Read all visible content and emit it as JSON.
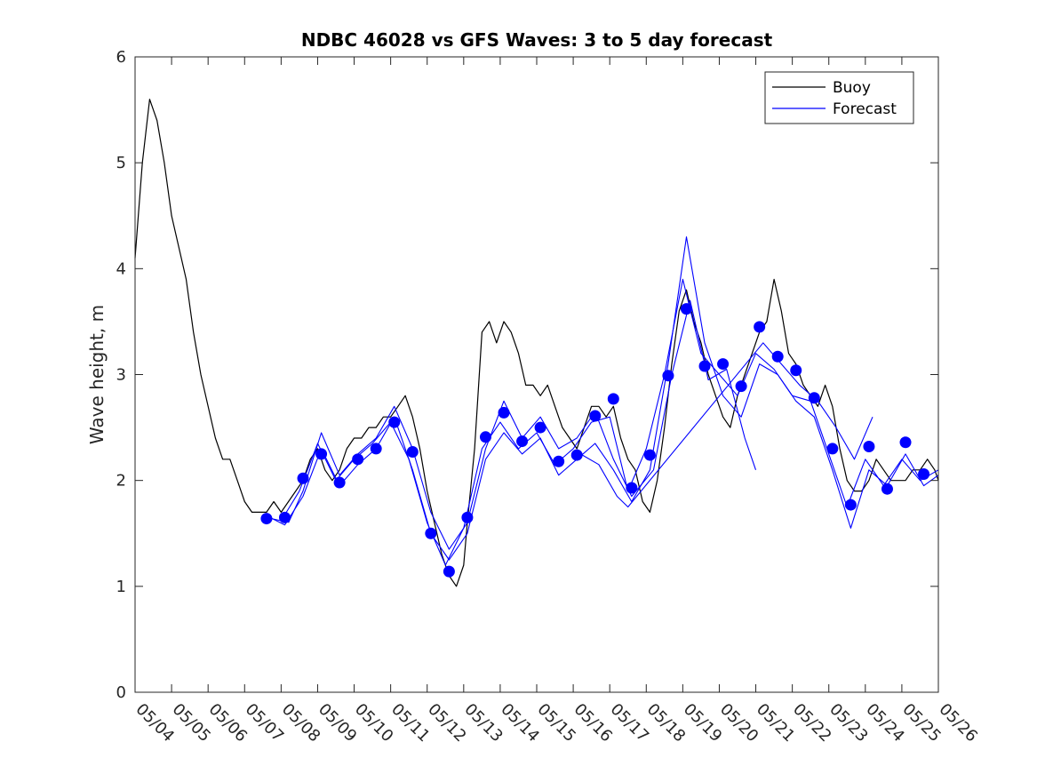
{
  "chart_data": {
    "type": "line",
    "title": "NDBC 46028 vs GFS Waves: 3 to 5 day forecast",
    "xlabel": "",
    "ylabel": "Wave height, m",
    "xlim": [
      "05/04",
      "05/26"
    ],
    "ylim": [
      0,
      6
    ],
    "x_tick_labels": [
      "05/04",
      "05/05",
      "05/06",
      "05/07",
      "05/08",
      "05/09",
      "05/10",
      "05/11",
      "05/12",
      "05/13",
      "05/14",
      "05/15",
      "05/16",
      "05/17",
      "05/18",
      "05/19",
      "05/20",
      "05/21",
      "05/22",
      "05/23",
      "05/24",
      "05/25",
      "05/26"
    ],
    "y_ticks": [
      0,
      1,
      2,
      3,
      4,
      5,
      6
    ],
    "grid": false,
    "legend": {
      "position": "top-right",
      "entries": [
        {
          "name": "Buoy",
          "color": "#000000"
        },
        {
          "name": "Forecast",
          "color": "#0000ff"
        }
      ]
    },
    "colors": {
      "buoy": "#000000",
      "forecast": "#0000ff",
      "markers": "#0000ff"
    },
    "series": [
      {
        "name": "Buoy",
        "style": "line",
        "color": "#000000",
        "x_unit": "day of May",
        "x": [
          4.0,
          4.2,
          4.4,
          4.6,
          4.8,
          5.0,
          5.2,
          5.4,
          5.6,
          5.8,
          6.0,
          6.2,
          6.4,
          6.6,
          6.8,
          7.0,
          7.2,
          7.4,
          7.6,
          7.8,
          8.0,
          8.2,
          8.4,
          8.6,
          8.8,
          9.0,
          9.2,
          9.4,
          9.6,
          9.8,
          10.0,
          10.2,
          10.4,
          10.6,
          10.8,
          11.0,
          11.2,
          11.4,
          11.6,
          11.8,
          12.0,
          12.2,
          12.4,
          12.6,
          12.8,
          13.0,
          13.1,
          13.3,
          13.5,
          13.7,
          13.9,
          14.1,
          14.3,
          14.5,
          14.7,
          14.9,
          15.1,
          15.3,
          15.5,
          15.7,
          15.9,
          16.1,
          16.3,
          16.5,
          16.7,
          16.9,
          17.1,
          17.3,
          17.5,
          17.7,
          17.9,
          18.1,
          18.3,
          18.5,
          18.7,
          18.9,
          19.1,
          19.3,
          19.5,
          19.7,
          19.9,
          20.1,
          20.3,
          20.5,
          20.7,
          20.9,
          21.1,
          21.3,
          21.5,
          21.7,
          21.9,
          22.1,
          22.3,
          22.5,
          22.7,
          22.9,
          23.1,
          23.3,
          23.5,
          23.7,
          23.9,
          24.1,
          24.3,
          24.5,
          24.7,
          24.9,
          25.1,
          25.3,
          25.5,
          25.7,
          25.9,
          26.0
        ],
        "y": [
          4.1,
          5.0,
          5.6,
          5.4,
          5.0,
          4.5,
          4.2,
          3.9,
          3.4,
          3.0,
          2.7,
          2.4,
          2.2,
          2.2,
          2.0,
          1.8,
          1.7,
          1.7,
          1.7,
          1.8,
          1.7,
          1.8,
          1.9,
          2.0,
          2.2,
          2.3,
          2.1,
          2.0,
          2.1,
          2.3,
          2.4,
          2.4,
          2.5,
          2.5,
          2.6,
          2.6,
          2.7,
          2.8,
          2.6,
          2.3,
          1.9,
          1.6,
          1.3,
          1.1,
          1.0,
          1.2,
          1.6,
          2.3,
          3.4,
          3.5,
          3.3,
          3.5,
          3.4,
          3.2,
          2.9,
          2.9,
          2.8,
          2.9,
          2.7,
          2.5,
          2.4,
          2.3,
          2.5,
          2.7,
          2.7,
          2.6,
          2.7,
          2.4,
          2.2,
          2.1,
          1.8,
          1.7,
          2.0,
          2.5,
          3.1,
          3.6,
          3.8,
          3.5,
          3.3,
          3.0,
          2.8,
          2.6,
          2.5,
          2.8,
          3.0,
          3.2,
          3.4,
          3.5,
          3.9,
          3.6,
          3.2,
          3.1,
          2.9,
          2.8,
          2.7,
          2.9,
          2.7,
          2.3,
          2.0,
          1.9,
          1.9,
          2.0,
          2.2,
          2.1,
          2.0,
          2.0,
          2.0,
          2.1,
          2.1,
          2.2,
          2.1,
          2.0
        ]
      },
      {
        "name": "Forecast",
        "style": "markers",
        "color": "#0000ff",
        "x_unit": "day of May",
        "x": [
          7.6,
          8.1,
          8.6,
          9.1,
          9.6,
          10.1,
          10.6,
          11.1,
          11.6,
          12.1,
          12.6,
          13.1,
          13.6,
          14.1,
          14.6,
          15.1,
          15.6,
          16.1,
          16.6,
          17.1,
          17.6,
          18.1,
          18.6,
          19.1,
          19.6,
          20.1,
          20.6,
          21.1,
          21.6,
          22.1,
          22.6,
          23.1,
          23.6,
          24.1,
          24.6,
          25.1,
          25.6
        ],
        "y": [
          1.64,
          1.65,
          2.02,
          2.25,
          1.98,
          2.2,
          2.3,
          2.55,
          2.27,
          1.5,
          1.14,
          1.65,
          2.41,
          2.64,
          2.37,
          2.5,
          2.18,
          2.24,
          2.61,
          2.77,
          1.93,
          2.24,
          2.99,
          3.62,
          3.08,
          3.1,
          2.89,
          3.45,
          3.17,
          3.04,
          2.78,
          2.3,
          1.77,
          2.32,
          1.92,
          2.36,
          2.06
        ]
      },
      {
        "name": "",
        "style": "line",
        "color": "#0000ff",
        "x_unit": "day of May",
        "x": [
          7.6,
          8.0,
          8.5,
          9.0,
          9.5,
          10.0,
          10.5,
          11.0,
          11.5,
          12.0,
          12.5,
          13.0,
          13.5,
          14.0,
          14.5,
          15.0,
          15.5,
          16.0,
          16.5,
          17.0,
          17.5,
          18.0,
          18.5,
          19.0,
          19.5,
          20.0,
          20.5,
          21.0,
          21.5,
          22.0,
          22.5,
          23.0,
          23.5,
          24.0,
          24.5,
          25.0,
          25.5,
          26.0
        ],
        "y": [
          1.65,
          1.62,
          1.9,
          2.35,
          2.0,
          2.2,
          2.35,
          2.55,
          2.2,
          1.6,
          1.2,
          1.55,
          2.3,
          2.55,
          2.3,
          2.45,
          2.15,
          2.3,
          2.55,
          2.6,
          1.9,
          2.3,
          3.0,
          3.9,
          3.2,
          3.0,
          2.8,
          3.2,
          3.05,
          2.8,
          2.75,
          2.25,
          1.75,
          2.2,
          1.95,
          2.2,
          2.0,
          2.1
        ]
      },
      {
        "name": "",
        "style": "line",
        "color": "#0000ff",
        "x_unit": "day of May",
        "x": [
          7.7,
          8.1,
          8.6,
          9.1,
          9.6,
          10.1,
          10.6,
          11.1,
          11.6,
          12.1,
          12.6,
          13.1,
          13.6,
          14.1,
          14.6,
          15.1,
          15.6,
          16.1,
          16.6,
          17.1,
          17.6,
          18.1,
          18.6,
          19.1,
          19.6,
          20.1,
          20.6,
          21.1,
          21.6,
          22.1,
          22.6,
          23.1,
          23.6,
          24.1,
          24.6,
          25.1,
          25.6,
          26.0
        ],
        "y": [
          1.65,
          1.58,
          1.85,
          2.3,
          1.95,
          2.15,
          2.3,
          2.6,
          2.1,
          1.5,
          1.25,
          1.5,
          2.2,
          2.45,
          2.25,
          2.4,
          2.05,
          2.2,
          2.35,
          2.1,
          1.8,
          2.1,
          3.1,
          4.3,
          3.3,
          2.8,
          2.6,
          3.1,
          3.0,
          2.75,
          2.6,
          2.1,
          1.55,
          2.1,
          1.95,
          2.25,
          1.95,
          2.05
        ]
      },
      {
        "name": "",
        "style": "line",
        "color": "#0000ff",
        "x_unit": "day of May",
        "x": [
          8.2,
          8.6,
          9.1,
          9.6,
          10.1,
          10.6,
          11.1,
          11.6,
          12.1,
          12.6,
          13.1,
          13.6,
          14.1,
          14.6,
          15.1,
          15.6,
          16.1,
          16.6,
          17.1,
          17.6,
          18.2,
          18.7,
          19.2,
          19.7,
          20.2,
          20.7,
          21.0
        ],
        "y": [
          1.6,
          1.9,
          2.45,
          2.05,
          2.25,
          2.4,
          2.7,
          2.3,
          1.7,
          1.35,
          1.6,
          2.3,
          2.75,
          2.4,
          2.6,
          2.3,
          2.4,
          2.65,
          2.2,
          1.85,
          2.1,
          3.0,
          3.7,
          2.95,
          3.05,
          2.4,
          2.1
        ]
      },
      {
        "name": "",
        "style": "line",
        "color": "#0000ff",
        "x_unit": "day of May",
        "x": [
          16.2,
          16.7,
          17.2,
          17.5,
          21.2,
          21.7,
          22.2,
          22.7,
          23.2,
          23.7,
          24.2
        ],
        "y": [
          2.25,
          2.15,
          1.85,
          1.75,
          3.3,
          3.1,
          2.9,
          2.75,
          2.5,
          2.2,
          2.6
        ]
      }
    ]
  }
}
